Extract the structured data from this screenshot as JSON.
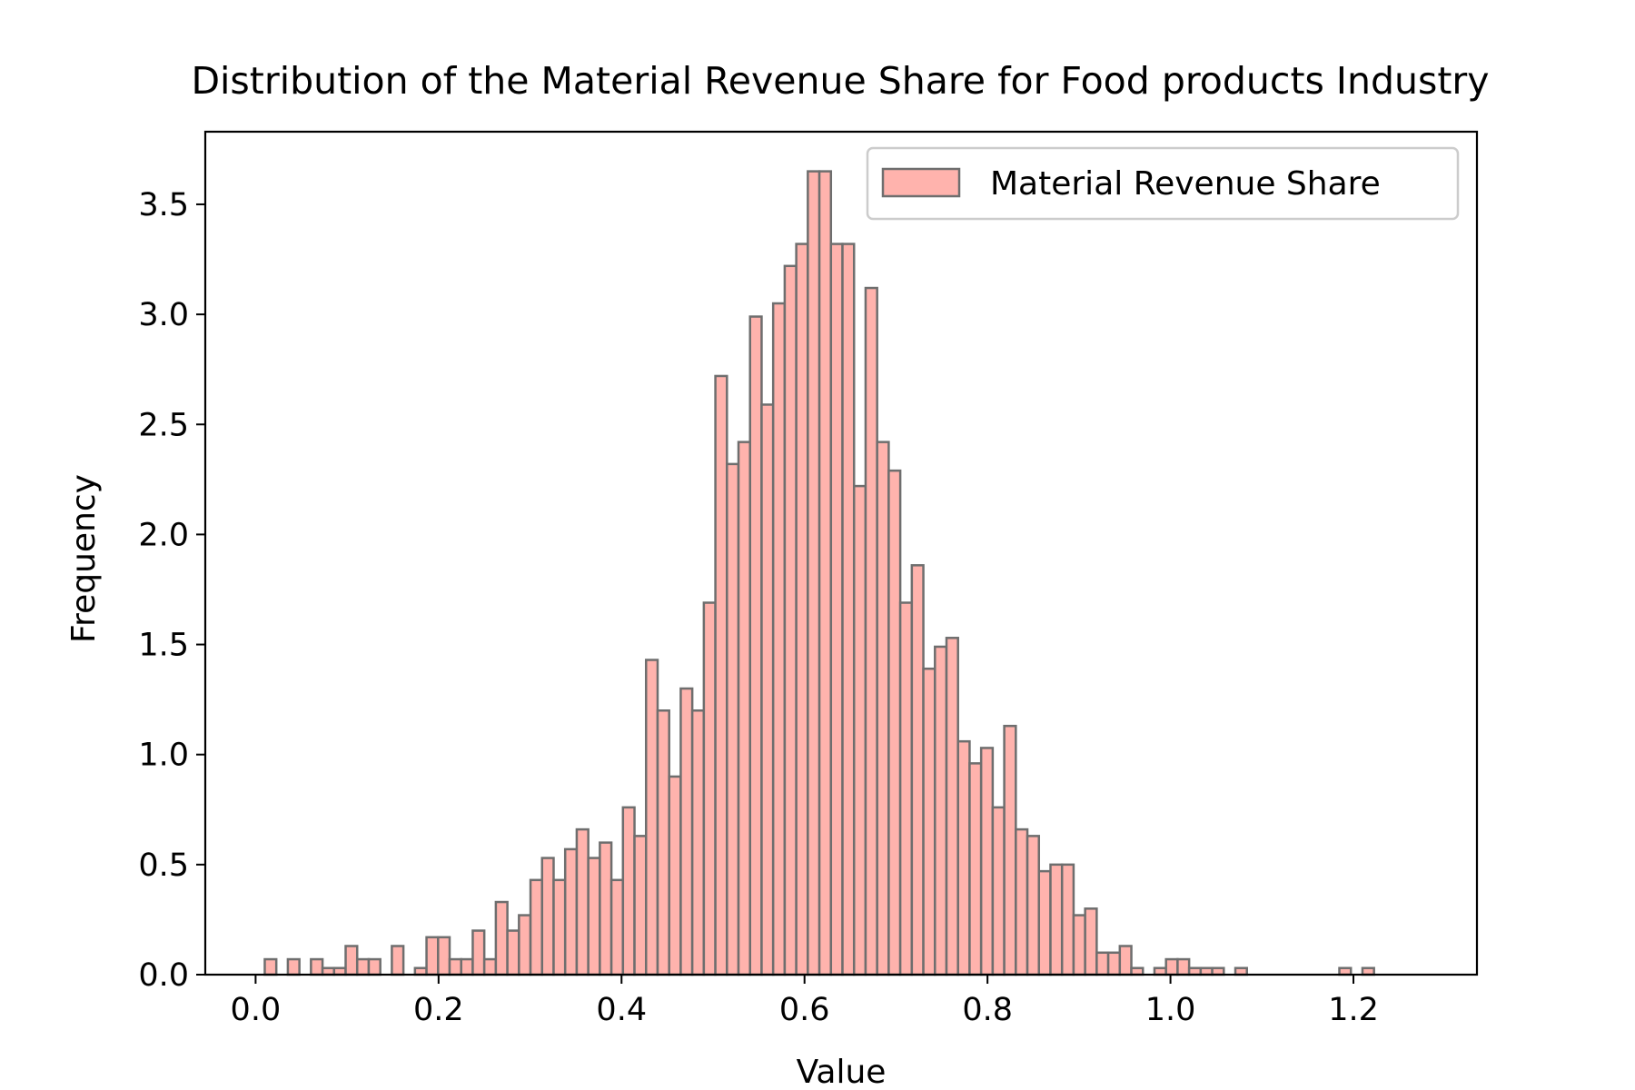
{
  "chart_data": {
    "type": "bar",
    "title": "Distribution of the Material Revenue Share for Food products Industry",
    "xlabel": "Value",
    "ylabel": "Frequency",
    "xlim": [
      -0.055,
      1.335
    ],
    "ylim": [
      0,
      3.83
    ],
    "xticks": [
      "0.0",
      "0.2",
      "0.4",
      "0.6",
      "0.8",
      "1.0",
      "1.2"
    ],
    "yticks": [
      "0.0",
      "0.5",
      "1.0",
      "1.5",
      "2.0",
      "2.5",
      "3.0",
      "3.5"
    ],
    "bin_start": 0.01,
    "bin_width": 0.01263,
    "series": [
      {
        "name": "Material Revenue Share",
        "values": [
          0.07,
          0,
          0.07,
          0,
          0.07,
          0.03,
          0.03,
          0.13,
          0.07,
          0.07,
          0,
          0.13,
          0,
          0.03,
          0.17,
          0.17,
          0.07,
          0.07,
          0.2,
          0.07,
          0.33,
          0.2,
          0.27,
          0.43,
          0.53,
          0.43,
          0.57,
          0.66,
          0.53,
          0.6,
          0.43,
          0.76,
          0.63,
          1.43,
          1.2,
          0.9,
          1.3,
          1.2,
          1.69,
          2.72,
          2.32,
          2.42,
          2.99,
          2.59,
          3.05,
          3.22,
          3.32,
          3.65,
          3.65,
          3.32,
          3.32,
          2.22,
          3.12,
          2.42,
          2.29,
          1.69,
          1.86,
          1.39,
          1.49,
          1.53,
          1.06,
          0.96,
          1.03,
          0.76,
          1.13,
          0.66,
          0.63,
          0.47,
          0.5,
          0.5,
          0.27,
          0.3,
          0.1,
          0.1,
          0.13,
          0.03,
          0,
          0.03,
          0.07,
          0.07,
          0.03,
          0.03,
          0.03,
          0,
          0.03,
          0,
          0,
          0,
          0,
          0,
          0,
          0,
          0,
          0.03,
          0,
          0.03
        ]
      }
    ],
    "legend_position": "top-right",
    "grid": false,
    "colors": {
      "bar_fill": "#ffb3ad",
      "bar_edge": "#6e6e6e",
      "axis": "#000000"
    }
  }
}
